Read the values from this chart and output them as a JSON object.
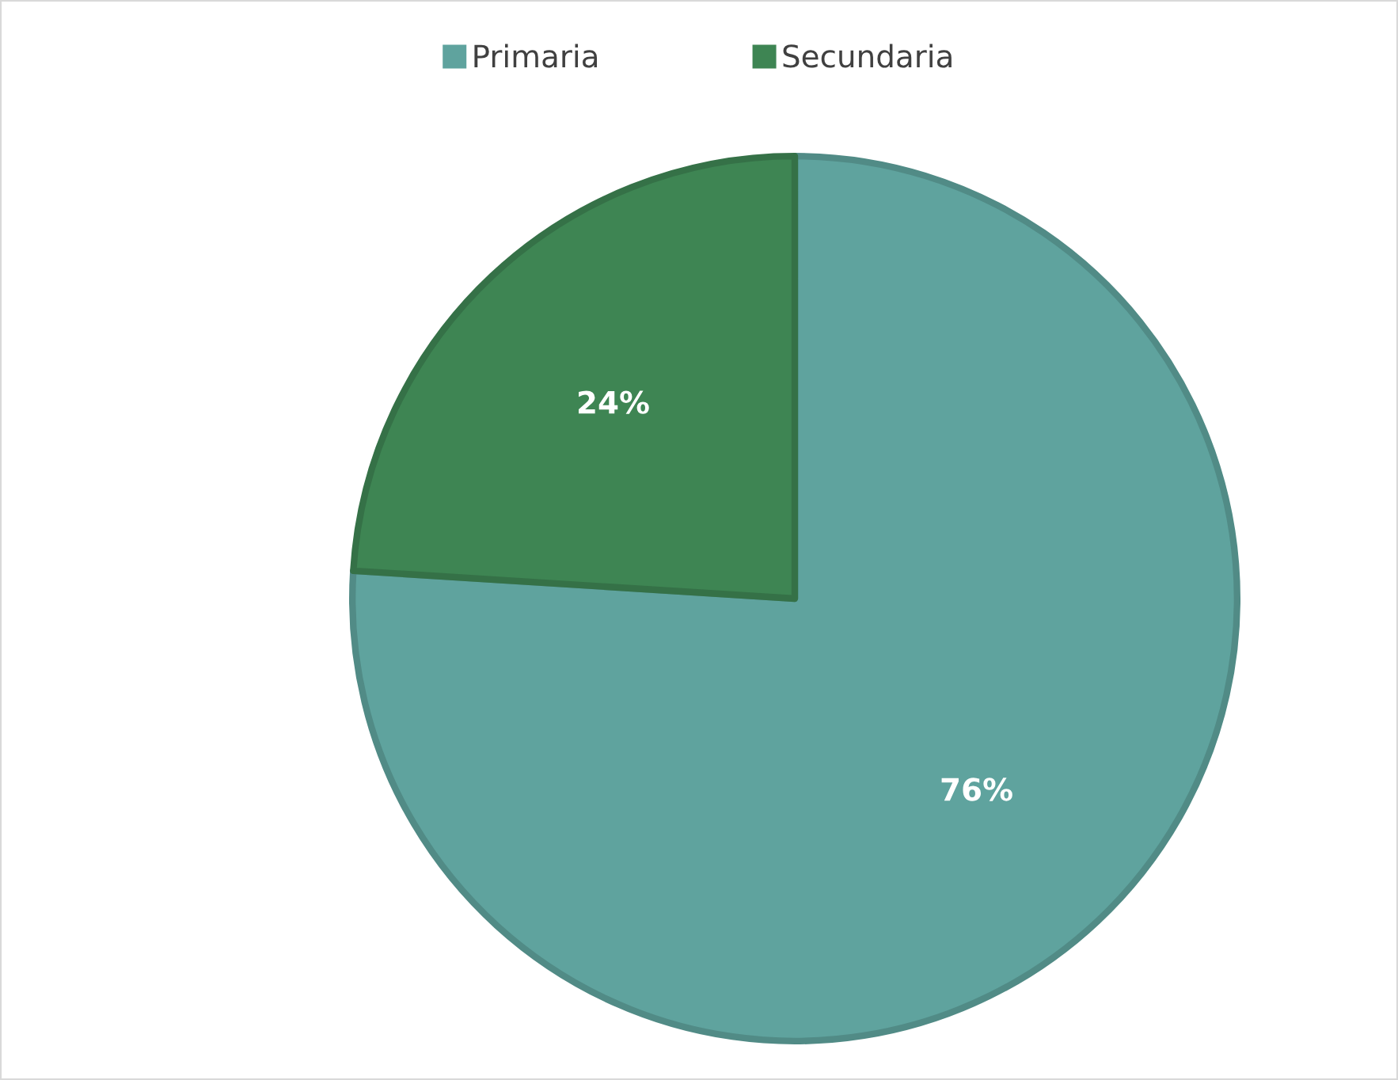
{
  "chart_data": {
    "type": "pie",
    "categories": [
      "Primaria",
      "Secundaria"
    ],
    "values": [
      76,
      24
    ],
    "colors": [
      "#5fa39e",
      "#3e8553"
    ],
    "value_labels": [
      "76%",
      "24%"
    ],
    "legend": "top"
  }
}
